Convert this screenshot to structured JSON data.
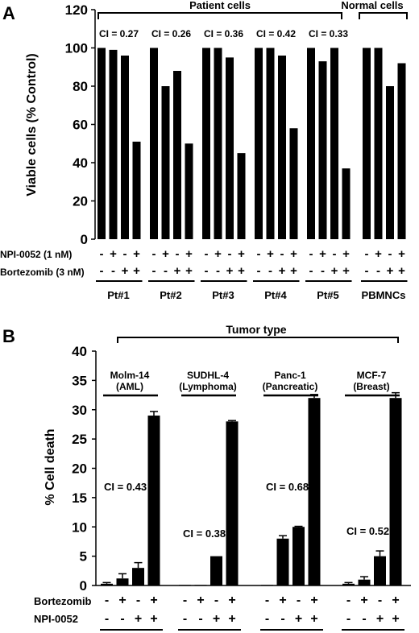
{
  "chart_data": [
    {
      "panel_label": "A",
      "type": "bar",
      "ylabel": "Viable cells (% Control)",
      "ylim": [
        0,
        120
      ],
      "yticks": [
        0,
        20,
        40,
        60,
        80,
        100,
        120
      ],
      "grid": false,
      "bracket_labels": [
        "Patient cells",
        "Normal cells"
      ],
      "row_labels": [
        "NPI-0052 (1 nM)",
        "Bortezomib (3 nM)"
      ],
      "conditions": {
        "npi": [
          "-",
          "+",
          "-",
          "+"
        ],
        "bortezomib": [
          "-",
          "-",
          "+",
          "+"
        ]
      },
      "groups": [
        {
          "name": "Pt#1",
          "ci": "CI = 0.27",
          "values": [
            100,
            99,
            96,
            51
          ]
        },
        {
          "name": "Pt#2",
          "ci": "CI = 0.26",
          "values": [
            100,
            80,
            88,
            50
          ]
        },
        {
          "name": "Pt#3",
          "ci": "CI = 0.36",
          "values": [
            100,
            100,
            95,
            45
          ]
        },
        {
          "name": "Pt#4",
          "ci": "CI = 0.42",
          "values": [
            100,
            100,
            96,
            58
          ]
        },
        {
          "name": "Pt#5",
          "ci": "CI = 0.33",
          "values": [
            100,
            93,
            100,
            37
          ]
        },
        {
          "name": "PBMNCs",
          "ci": "",
          "values": [
            100,
            100,
            80,
            92
          ]
        }
      ]
    },
    {
      "panel_label": "B",
      "type": "bar",
      "ylabel": "% Cell death",
      "ylim": [
        0,
        40
      ],
      "yticks": [
        0,
        5,
        10,
        15,
        20,
        25,
        30,
        35,
        40
      ],
      "grid": false,
      "bracket_labels": [
        "Tumor type"
      ],
      "row_labels": [
        "Bortezomib",
        "NPI-0052"
      ],
      "conditions": {
        "bortezomib": [
          "-",
          "+",
          "-",
          "+"
        ],
        "npi": [
          "-",
          "-",
          "+",
          "+"
        ]
      },
      "groups": [
        {
          "name": [
            "Molm-14",
            "(AML)"
          ],
          "ci": "CI = 0.43",
          "values": [
            0.3,
            1.2,
            3.0,
            29.0
          ],
          "errors": [
            0.2,
            0.8,
            0.9,
            0.7
          ]
        },
        {
          "name": [
            "SUDHL-4",
            "(Lymphoma)"
          ],
          "ci": "CI = 0.38",
          "values": [
            0.1,
            0.1,
            5.0,
            28.0
          ],
          "errors": [
            0,
            0,
            0,
            0.15
          ]
        },
        {
          "name": [
            "Panc-1",
            "(Pancreatic)"
          ],
          "ci": "CI = 0.68",
          "values": [
            0.1,
            8.0,
            10.0,
            32.0
          ],
          "errors": [
            0,
            0.5,
            0.1,
            0.6
          ]
        },
        {
          "name": [
            "MCF-7",
            "(Breast)"
          ],
          "ci": "CI = 0.52",
          "values": [
            0.3,
            1.0,
            5.0,
            32.0
          ],
          "errors": [
            0.2,
            0.5,
            0.9,
            0.9
          ]
        }
      ]
    }
  ]
}
